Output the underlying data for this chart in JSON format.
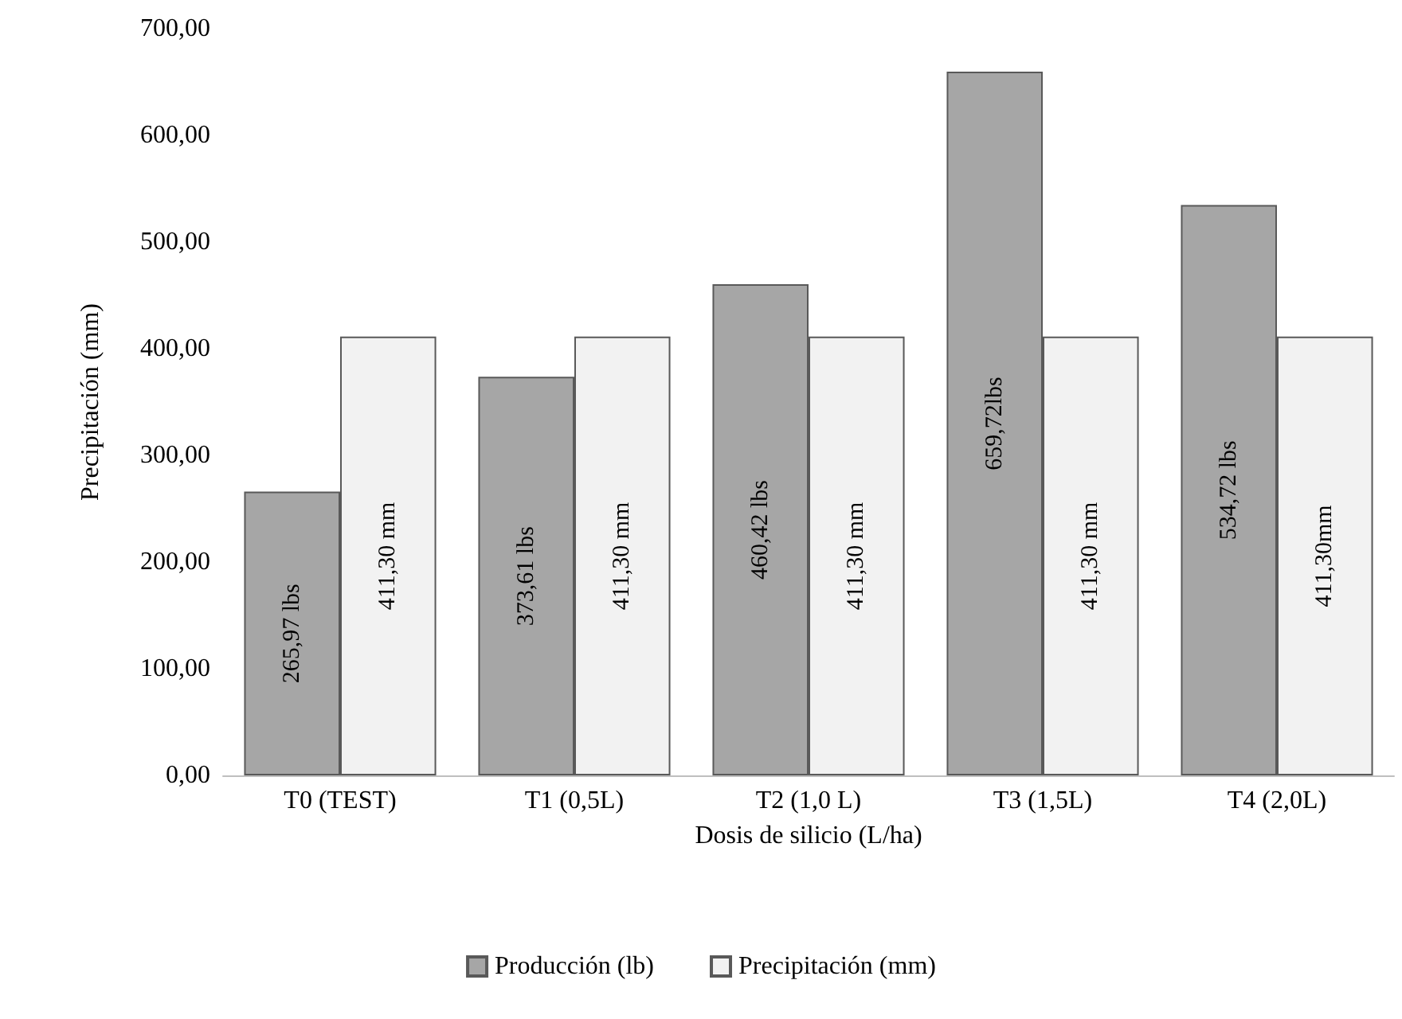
{
  "chart_data": {
    "type": "bar",
    "xlabel": "Dosis de silicio (L/ha)",
    "ylabel": "Precipitación (mm)",
    "categories": [
      "T0 (TEST)",
      "T1 (0,5L)",
      "T2 (1,0 L)",
      "T3 (1,5L)",
      "T4 (2,0L)"
    ],
    "series": [
      {
        "name": "Producción (lb)",
        "color": "#a6a6a6",
        "values": [
          265.97,
          373.61,
          460.42,
          659.72,
          534.72
        ],
        "value_labels": [
          "265,97 lbs",
          "373,61 lbs",
          "460,42 lbs",
          "659,72lbs",
          "534,72 lbs"
        ]
      },
      {
        "name": "Precipitación (mm)",
        "color": "#f2f2f2",
        "values": [
          411.3,
          411.3,
          411.3,
          411.3,
          411.3
        ],
        "value_labels": [
          "411,30 mm",
          "411,30 mm",
          "411,30 mm",
          "411,30 mm",
          "411,30mm"
        ]
      }
    ],
    "ylim": [
      0,
      700
    ],
    "yticks": [
      {
        "value": 0,
        "label": "0,00"
      },
      {
        "value": 100,
        "label": "100,00"
      },
      {
        "value": 200,
        "label": "200,00"
      },
      {
        "value": 300,
        "label": "300,00"
      },
      {
        "value": 400,
        "label": "400,00"
      },
      {
        "value": 500,
        "label": "500,00"
      },
      {
        "value": 600,
        "label": "600,00"
      },
      {
        "value": 700,
        "label": "700,00"
      }
    ],
    "grid": false,
    "legend": "bottom"
  }
}
